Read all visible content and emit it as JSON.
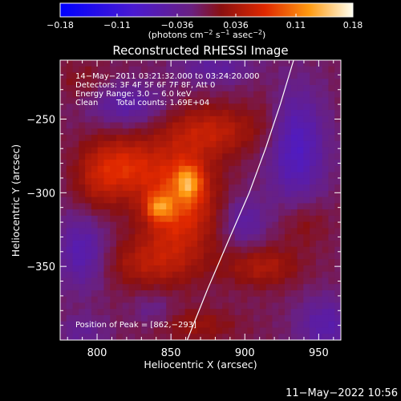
{
  "chart_data": {
    "type": "heatmap",
    "title": "Reconstructed RHESSI Image",
    "xlabel": "Heliocentric X (arcsec)",
    "ylabel": "Heliocentric Y (arcsec)",
    "xlim": [
      775,
      965
    ],
    "ylim": [
      -400,
      -210
    ],
    "xticks": [
      800,
      850,
      900,
      950
    ],
    "yticks": [
      -250,
      -300,
      -350
    ],
    "colorbar": {
      "range": [
        -0.18,
        0.18
      ],
      "ticks": [
        "−0.18",
        "−0.11",
        "−0.036",
        "0.036",
        "0.11",
        "0.18"
      ],
      "units_text": "(photons cm",
      "units_exp1": "−2",
      "units_mid": " s",
      "units_exp2": "−1",
      "units_end": " asec",
      "units_exp3": "−2",
      "units_close": ")"
    },
    "annotations": {
      "time_range": "14−May−2011 03:21:32.000 to 03:24:20.000",
      "detectors": "Detectors: 3F 4F 5F 6F 7F 8F, Att 0",
      "energy": "Energy Range: 3.0 − 6.0 keV",
      "clean": "Clean",
      "total_counts": "Total counts: 1.69E+04",
      "peak": "Position of Peak = [862,−293]"
    },
    "peak": [
      862,
      -293
    ],
    "limb_curve": [
      [
        861,
        -400
      ],
      [
        875,
        -365
      ],
      [
        890,
        -330
      ],
      [
        903,
        -300
      ],
      [
        914,
        -270
      ],
      [
        924,
        -240
      ],
      [
        933,
        -210
      ]
    ],
    "blobs": [
      {
        "x": 862,
        "y": -293,
        "amp": 0.075,
        "sx": 6,
        "sy": 8
      },
      {
        "x": 842,
        "y": -310,
        "amp": 0.07,
        "sx": 6,
        "sy": 6
      },
      {
        "x": 855,
        "y": -305,
        "amp": 0.09,
        "sx": 18,
        "sy": 28
      },
      {
        "x": 820,
        "y": -282,
        "amp": 0.06,
        "sx": 14,
        "sy": 14
      },
      {
        "x": 800,
        "y": -290,
        "amp": 0.045,
        "sx": 12,
        "sy": 18
      },
      {
        "x": 880,
        "y": -258,
        "amp": 0.05,
        "sx": 22,
        "sy": 12
      },
      {
        "x": 832,
        "y": -348,
        "amp": 0.04,
        "sx": 22,
        "sy": 12
      },
      {
        "x": 912,
        "y": -350,
        "amp": 0.045,
        "sx": 18,
        "sy": 10
      },
      {
        "x": 940,
        "y": -320,
        "amp": 0.03,
        "sx": 12,
        "sy": 12
      },
      {
        "x": 868,
        "y": -390,
        "amp": 0.03,
        "sx": 20,
        "sy": 8
      },
      {
        "x": 915,
        "y": -250,
        "amp": 0.015,
        "sx": 8,
        "sy": 18
      },
      {
        "x": 790,
        "y": -225,
        "amp": 0.02,
        "sx": 14,
        "sy": 10
      },
      {
        "x": 790,
        "y": -340,
        "amp": -0.06,
        "sx": 12,
        "sy": 18
      },
      {
        "x": 820,
        "y": -240,
        "amp": -0.05,
        "sx": 18,
        "sy": 10
      },
      {
        "x": 935,
        "y": -270,
        "amp": -0.07,
        "sx": 14,
        "sy": 28
      },
      {
        "x": 900,
        "y": -320,
        "amp": -0.045,
        "sx": 10,
        "sy": 12
      },
      {
        "x": 955,
        "y": -390,
        "amp": -0.05,
        "sx": 14,
        "sy": 14
      },
      {
        "x": 880,
        "y": -215,
        "amp": -0.04,
        "sx": 18,
        "sy": 8
      },
      {
        "x": 790,
        "y": -395,
        "amp": -0.03,
        "sx": 12,
        "sy": 8
      },
      {
        "x": 838,
        "y": -380,
        "amp": -0.025,
        "sx": 10,
        "sy": 8
      }
    ]
  },
  "footer": {
    "date": "11−May−2022 10:56"
  }
}
